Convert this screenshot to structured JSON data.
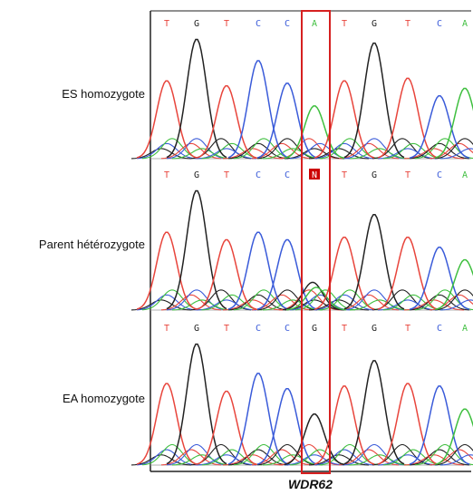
{
  "tracks": [
    {
      "label": "ES homozygote",
      "bases": [
        "T",
        "G",
        "T",
        "C",
        "C",
        "A",
        "T",
        "G",
        "T",
        "C",
        "A"
      ],
      "highlight_base": null
    },
    {
      "label": "Parent hétérozygote",
      "bases": [
        "T",
        "G",
        "T",
        "C",
        "C",
        "N",
        "T",
        "G",
        "T",
        "C",
        "A"
      ],
      "highlight_base": 5
    },
    {
      "label": "EA homozygote",
      "bases": [
        "T",
        "G",
        "T",
        "C",
        "C",
        "G",
        "T",
        "G",
        "T",
        "C",
        "A"
      ],
      "highlight_base": null
    }
  ],
  "gene": "WDR62",
  "colors": {
    "T": "#e8453c",
    "G": "#222222",
    "C": "#3a5bd9",
    "A": "#3fbf3f",
    "N": "#cc0000",
    "highlight_box": "#d62020",
    "frame": "#222222"
  }
}
